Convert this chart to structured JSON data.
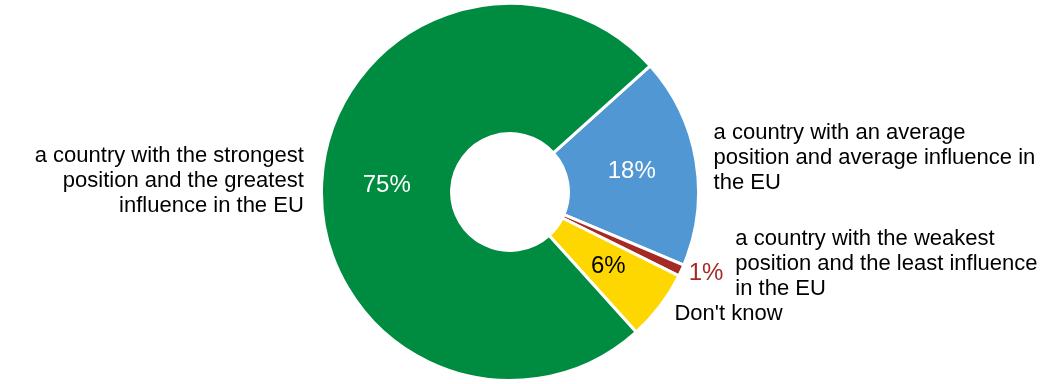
{
  "chart_data": {
    "type": "donut",
    "categories": [
      "a country with an average position and average influence in the EU",
      "a country with the weakest position and the least influence in the EU",
      "Don't know",
      "a country with the strongest position and the greatest influence in the EU"
    ],
    "values": [
      18,
      1,
      6,
      75
    ],
    "colors": [
      "#5097d3",
      "#a52a24",
      "#ffd700",
      "#008c40"
    ],
    "value_labels": [
      "18%",
      "1%",
      "6%",
      "75%"
    ]
  }
}
